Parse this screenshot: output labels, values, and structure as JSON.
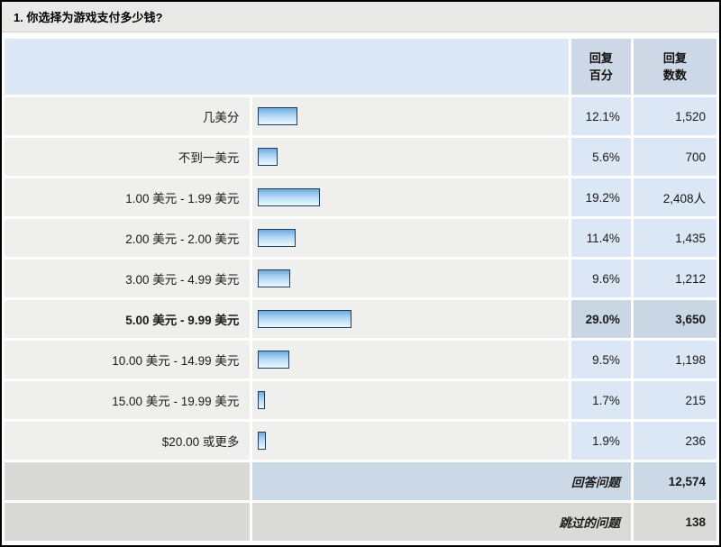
{
  "question": {
    "title": "1. 你选择为游戏支付多少钱?"
  },
  "table": {
    "headers": {
      "percent": "回复\n百分",
      "count": "回复\n数数"
    },
    "rows": [
      {
        "label": "几美分",
        "pct": 12.1,
        "percent": "12.1%",
        "count": "1,520",
        "bold": false
      },
      {
        "label": "不到一美元",
        "pct": 5.6,
        "percent": "5.6%",
        "count": "700",
        "bold": false
      },
      {
        "label": "1.00 美元 - 1.99 美元",
        "pct": 19.2,
        "percent": "19.2%",
        "count": "2,408人",
        "bold": false
      },
      {
        "label": "2.00 美元 - 2.00 美元",
        "pct": 11.4,
        "percent": "11.4%",
        "count": "1,435",
        "bold": false
      },
      {
        "label": "3.00 美元 - 4.99 美元",
        "pct": 9.6,
        "percent": "9.6%",
        "count": "1,212",
        "bold": false
      },
      {
        "label": "5.00 美元 - 9.99 美元",
        "pct": 29.0,
        "percent": "29.0%",
        "count": "3,650",
        "bold": true
      },
      {
        "label": "10.00 美元 - 14.99 美元",
        "pct": 9.5,
        "percent": "9.5%",
        "count": "1,198",
        "bold": false
      },
      {
        "label": "15.00 美元 - 19.99 美元",
        "pct": 1.7,
        "percent": "1.7%",
        "count": "215",
        "bold": false
      },
      {
        "label": "$20.00 或更多",
        "pct": 1.9,
        "percent": "1.9%",
        "count": "236",
        "bold": false
      }
    ],
    "footer": {
      "answered": {
        "label": "回答问题",
        "count": "12,574"
      },
      "skipped": {
        "label": "跳过的问题",
        "count": "138"
      }
    }
  },
  "colors": {
    "bar_border": "#1e3c5c",
    "bar_fill": "#9ccaee",
    "row_label_bg": "#efefed",
    "row_value_bg": "#dbe7f4",
    "highlight_value_bg": "#c9d6e4",
    "header_cell_bg": "#ccd8e5",
    "answered_row_bg": "#cbd9e7",
    "skipped_row_bg": "#dadad8",
    "title_bar_bg": "#e9e9e7"
  },
  "chart_data": {
    "type": "bar",
    "orientation": "horizontal",
    "title": "1. 你选择为游戏支付多少钱?",
    "categories": [
      "几美分",
      "不到一美元",
      "1.00 美元 - 1.99 美元",
      "2.00 美元 - 2.00 美元",
      "3.00 美元 - 4.99 美元",
      "5.00 美元 - 9.99 美元",
      "10.00 美元 - 14.99 美元",
      "15.00 美元 - 19.99 美元",
      "$20.00 或更多"
    ],
    "series": [
      {
        "name": "回复百分",
        "values": [
          12.1,
          5.6,
          19.2,
          11.4,
          9.6,
          29.0,
          9.5,
          1.7,
          1.9
        ]
      },
      {
        "name": "回复数数",
        "values": [
          1520,
          700,
          2408,
          1435,
          1212,
          3650,
          1198,
          215,
          236
        ]
      }
    ],
    "xlim": [
      0,
      100
    ],
    "answered_total": 12574,
    "skipped_total": 138,
    "legend_position": "none",
    "grid": false
  }
}
